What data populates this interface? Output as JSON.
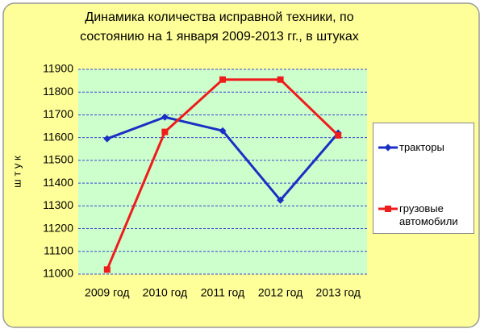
{
  "chart_data": {
    "type": "line",
    "title": [
      "Динамика количества исправной техники, по",
      "состоянию на 1 января 2009-2013 гг., в штуках"
    ],
    "y_label": "ш т у к",
    "categories": [
      "2009 год",
      "2010 год",
      "2011 год",
      "2012 год",
      "2013 год"
    ],
    "series": [
      {
        "name": "тракторы",
        "color": "#1a2fc4",
        "marker": "diamond",
        "values": [
          11595,
          11690,
          11630,
          11325,
          11620
        ]
      },
      {
        "name": "грузовые автомобили",
        "color": "#ee1c1c",
        "marker": "square",
        "values": [
          11020,
          11625,
          11855,
          11855,
          11610
        ]
      }
    ],
    "ylim": [
      11000,
      11900
    ],
    "yticks": [
      11000,
      11100,
      11200,
      11300,
      11400,
      11500,
      11600,
      11700,
      11800,
      11900
    ],
    "grid": true,
    "legend": "right"
  }
}
